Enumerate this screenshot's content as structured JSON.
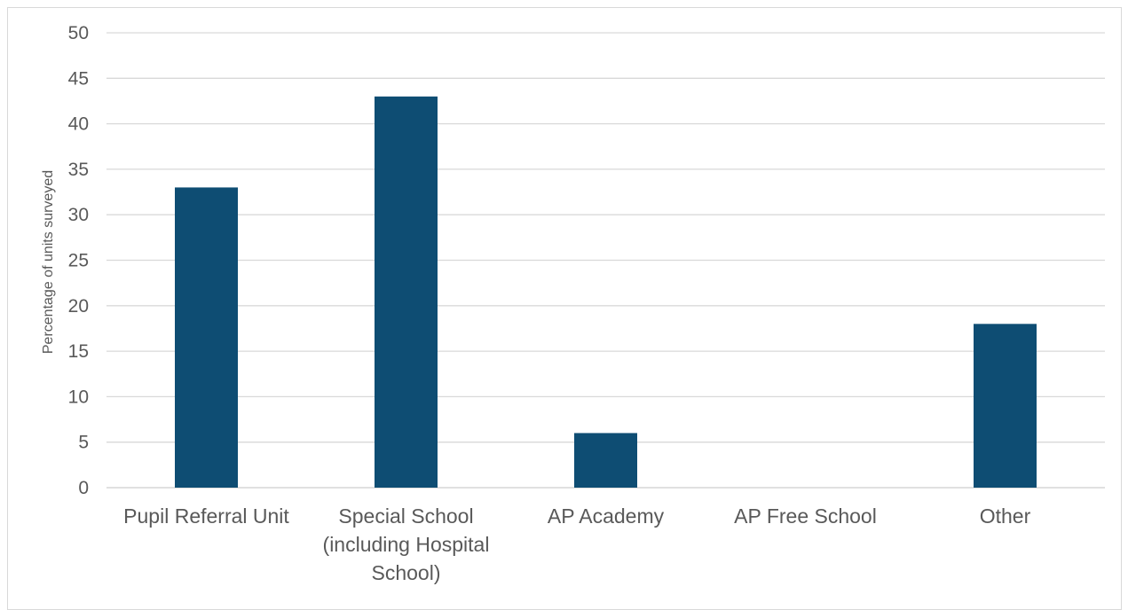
{
  "chart_data": {
    "type": "bar",
    "categories": [
      "Pupil Referral Unit",
      "Special School (including Hospital School)",
      "AP Academy",
      "AP Free School",
      "Other"
    ],
    "category_label_lines": [
      [
        "Pupil Referral Unit"
      ],
      [
        "Special School",
        "(including Hospital",
        "School)"
      ],
      [
        "AP Academy"
      ],
      [
        "AP Free School"
      ],
      [
        "Other"
      ]
    ],
    "values": [
      33,
      43,
      6,
      0,
      18
    ],
    "title": "",
    "xlabel": "",
    "ylabel": "Percentage of units surveyed",
    "ylim": [
      0,
      50
    ],
    "yticks": [
      "0",
      "5",
      "10",
      "15",
      "20",
      "25",
      "30",
      "35",
      "40",
      "45",
      "50"
    ],
    "grid": true,
    "legend": "none",
    "bar_color": "#0e4d73",
    "grid_color": "#d9d9d9"
  }
}
